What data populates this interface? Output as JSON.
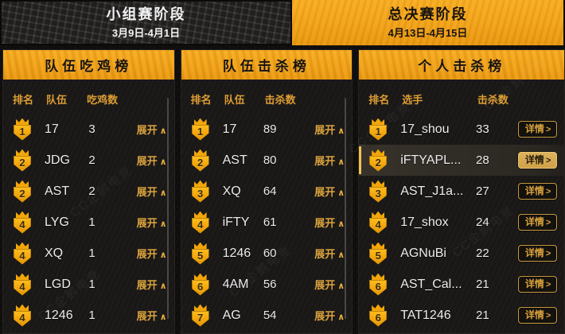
{
  "tabs": [
    {
      "label": "小组赛阶段",
      "dates": "3月9日-4月1日",
      "active": false
    },
    {
      "label": "总决赛阶段",
      "dates": "4月13日-4月15日",
      "active": true
    }
  ],
  "panels": [
    {
      "title": "队伍吃鸡榜",
      "columns": [
        "排名",
        "队伍",
        "吃鸡数"
      ],
      "action": {
        "type": "expand",
        "label": "展开"
      },
      "scrollbar": true,
      "rows": [
        {
          "rank": 1,
          "name": "17",
          "value": 3
        },
        {
          "rank": 2,
          "name": "JDG",
          "value": 2
        },
        {
          "rank": 2,
          "name": "AST",
          "value": 2
        },
        {
          "rank": 4,
          "name": "LYG",
          "value": 1
        },
        {
          "rank": 4,
          "name": "XQ",
          "value": 1
        },
        {
          "rank": 4,
          "name": "LGD",
          "value": 1
        },
        {
          "rank": 4,
          "name": "1246",
          "value": 1
        }
      ]
    },
    {
      "title": "队伍击杀榜",
      "columns": [
        "排名",
        "队伍",
        "击杀数"
      ],
      "action": {
        "type": "expand",
        "label": "展开"
      },
      "scrollbar": true,
      "rows": [
        {
          "rank": 1,
          "name": "17",
          "value": 89
        },
        {
          "rank": 2,
          "name": "AST",
          "value": 80
        },
        {
          "rank": 3,
          "name": "XQ",
          "value": 64
        },
        {
          "rank": 4,
          "name": "iFTY",
          "value": 61
        },
        {
          "rank": 5,
          "name": "1246",
          "value": 60
        },
        {
          "rank": 6,
          "name": "4AM",
          "value": 56
        },
        {
          "rank": 7,
          "name": "AG",
          "value": 54
        }
      ]
    },
    {
      "title": "个人击杀榜",
      "columns": [
        "排名",
        "选手",
        "击杀数"
      ],
      "action": {
        "type": "details",
        "label": "详情"
      },
      "scrollbar": false,
      "rows": [
        {
          "rank": 1,
          "name": "17_shou",
          "value": 33
        },
        {
          "rank": 2,
          "name": "iFTYAPL...",
          "value": 28,
          "highlighted": true
        },
        {
          "rank": 3,
          "name": "AST_J1a...",
          "value": 27
        },
        {
          "rank": 4,
          "name": "17_shox",
          "value": 24
        },
        {
          "rank": 5,
          "name": "AGNuBi",
          "value": 22
        },
        {
          "rank": 6,
          "name": "AST_Cal...",
          "value": 21
        },
        {
          "rank": 6,
          "name": "TAT1246",
          "value": 21
        }
      ]
    }
  ],
  "icons": {
    "chevron_up": "∧",
    "chevron_right": ">"
  },
  "watermark": "CC企鹅电竞",
  "colors": {
    "accent_orange": "#F2A117",
    "gold_text": "#D9A23C",
    "badge_gold": "#F2A50B",
    "panel_bg": "#1B1918",
    "page_bg": "#0E0D0C",
    "highlight_row_bg": "#35312A",
    "details_active_bg": "#CFA148"
  }
}
